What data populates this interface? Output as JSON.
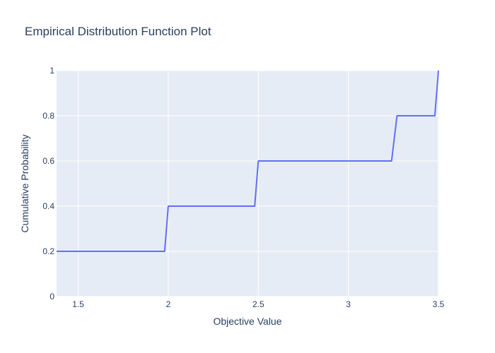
{
  "chart_data": {
    "type": "line",
    "title": "Empirical Distribution Function Plot",
    "xlabel": "Objective Value",
    "ylabel": "Cumulative Probability",
    "xlim": [
      1.38,
      3.5
    ],
    "ylim": [
      0,
      1
    ],
    "x_ticks": [
      {
        "value": 1.5,
        "label": "1.5"
      },
      {
        "value": 2,
        "label": "2"
      },
      {
        "value": 2.5,
        "label": "2.5"
      },
      {
        "value": 3,
        "label": "3"
      },
      {
        "value": 3.5,
        "label": "3.5"
      }
    ],
    "y_ticks": [
      {
        "value": 0,
        "label": "0"
      },
      {
        "value": 0.2,
        "label": "0.2"
      },
      {
        "value": 0.4,
        "label": "0.4"
      },
      {
        "value": 0.6,
        "label": "0.6"
      },
      {
        "value": 0.8,
        "label": "0.8"
      },
      {
        "value": 1,
        "label": "1"
      }
    ],
    "grid": true,
    "series": [
      {
        "color": "#636efa",
        "x": [
          1.38,
          1.98,
          2.0,
          2.48,
          2.5,
          3.24,
          3.27,
          3.48,
          3.5
        ],
        "y": [
          0.2,
          0.2,
          0.4,
          0.4,
          0.6,
          0.6,
          0.8,
          0.8,
          1.0
        ]
      }
    ],
    "colors": {
      "plot_background": "#e5ecf6",
      "grid": "#ffffff",
      "text": "#2a3f5f",
      "line": "#636efa"
    }
  }
}
